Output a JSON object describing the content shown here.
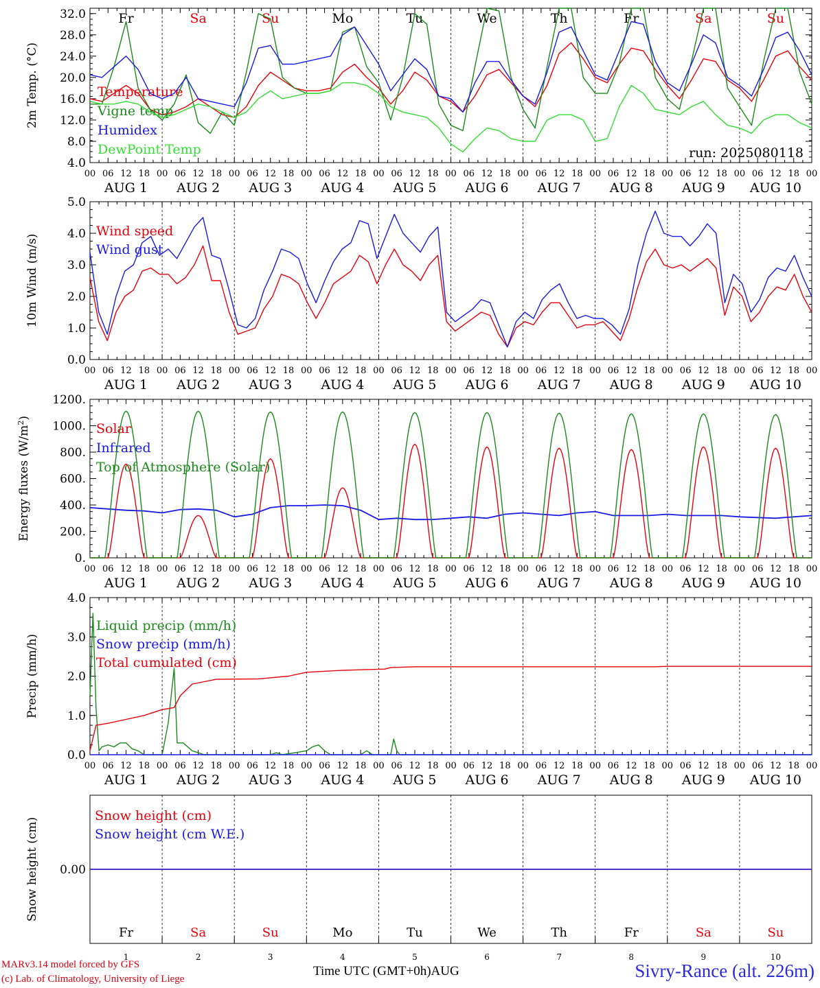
{
  "footer": {
    "model": "MARv3.14 model forced by GFS",
    "copyright": "(c) Lab. of Climatology, University of Liege",
    "x_axis_label": "Time UTC (GMT+0h)AUG",
    "station": "Sivry-Rance (alt. 226m)"
  },
  "colors": {
    "red": "#e8000b",
    "green": "#1a8a1a",
    "blue": "#1a1ae6",
    "lightgreen": "#33dd33",
    "weekend": "#e8000b"
  },
  "chart_data": [
    {
      "type": "line",
      "ylabel_text": "2m Temp. (",
      "ylabel_unit": "°C)",
      "ylim": [
        4,
        33
      ],
      "yticks": [
        "4.0",
        "8.0",
        "12.0",
        "16.0",
        "20.0",
        "24.0",
        "28.0",
        "32.0"
      ],
      "days": [
        "Fr",
        "Sa",
        "Su",
        "Mo",
        "Tu",
        "We",
        "Th",
        "Fr",
        "Sa",
        "Su"
      ],
      "date_labels": [
        "AUG 1",
        "AUG 2",
        "AUG 3",
        "AUG 4",
        "AUG 5",
        "AUG 6",
        "AUG 7",
        "AUG 8",
        "AUG 9",
        "AUG 10"
      ],
      "hour_ticks": [
        "00",
        "06",
        "12",
        "18"
      ],
      "annotation": "run: 2025080118",
      "series": [
        {
          "name": "Temperature",
          "color": "red",
          "values": [
            16.0,
            15.5,
            17.0,
            18.5,
            17.0,
            14.0,
            13.0,
            13.5,
            14.5,
            16.0,
            14.5,
            13.0,
            12.5,
            14.5,
            18.5,
            21.0,
            19.5,
            18.0,
            17.5,
            17.5,
            18.0,
            21.0,
            22.5,
            20.0,
            18.0,
            15.0,
            17.5,
            21.0,
            19.5,
            16.5,
            15.5,
            13.5,
            16.5,
            20.5,
            21.5,
            19.0,
            16.5,
            14.5,
            18.5,
            24.5,
            26.5,
            23.5,
            20.0,
            19.0,
            22.5,
            25.5,
            25.0,
            21.5,
            18.5,
            16.0,
            19.5,
            23.5,
            23.0,
            19.5,
            18.0,
            15.5,
            19.5,
            24.0,
            25.0,
            22.0,
            19.5
          ]
        },
        {
          "name": "Vigne temp",
          "color": "green",
          "values": [
            15.0,
            15.0,
            22.0,
            30.5,
            18.0,
            14.0,
            12.0,
            15.0,
            20.5,
            11.5,
            9.5,
            13.5,
            11.0,
            21.0,
            32.0,
            31.0,
            20.0,
            18.0,
            17.0,
            17.0,
            17.5,
            28.5,
            29.5,
            22.0,
            19.0,
            12.0,
            20.0,
            32.0,
            30.0,
            15.0,
            11.0,
            10.0,
            22.0,
            33.0,
            32.5,
            20.0,
            14.0,
            10.5,
            22.0,
            33.0,
            33.0,
            20.0,
            17.0,
            17.0,
            22.5,
            33.0,
            33.0,
            20.0,
            16.0,
            14.0,
            23.0,
            33.0,
            33.0,
            18.0,
            14.5,
            11.0,
            23.0,
            33.0,
            33.0,
            21.0,
            15.0
          ]
        },
        {
          "name": "Humidex",
          "color": "blue",
          "values": [
            20.5,
            20.0,
            22.0,
            24.0,
            21.5,
            17.0,
            16.0,
            17.0,
            20.0,
            16.0,
            15.5,
            15.0,
            14.5,
            19.0,
            25.5,
            26.0,
            22.5,
            22.5,
            23.0,
            23.5,
            24.0,
            28.0,
            29.5,
            26.0,
            22.5,
            17.5,
            20.5,
            23.5,
            21.5,
            16.5,
            16.0,
            13.5,
            19.0,
            23.0,
            23.0,
            19.5,
            16.5,
            15.0,
            21.0,
            28.5,
            29.5,
            25.0,
            20.5,
            19.5,
            25.0,
            30.5,
            30.0,
            23.0,
            19.0,
            17.5,
            22.5,
            28.0,
            26.5,
            20.0,
            18.5,
            16.5,
            21.5,
            27.5,
            28.5,
            25.0,
            20.5
          ]
        },
        {
          "name": "DewPoint Temp",
          "color": "lightgreen",
          "values": [
            15.5,
            15.0,
            15.0,
            15.5,
            15.0,
            13.5,
            12.5,
            13.0,
            14.0,
            15.0,
            14.5,
            13.5,
            12.5,
            13.5,
            16.0,
            17.5,
            16.0,
            16.5,
            17.0,
            17.0,
            17.5,
            19.0,
            19.0,
            18.5,
            17.0,
            14.5,
            13.5,
            13.0,
            12.5,
            10.5,
            7.5,
            6.0,
            8.5,
            10.5,
            10.0,
            8.5,
            8.0,
            8.0,
            12.0,
            13.0,
            13.0,
            12.0,
            8.0,
            8.5,
            14.5,
            18.5,
            17.0,
            14.0,
            13.5,
            13.0,
            14.5,
            15.5,
            13.0,
            11.0,
            10.5,
            9.5,
            12.0,
            13.0,
            13.0,
            11.5,
            10.5
          ]
        }
      ]
    },
    {
      "type": "line",
      "ylabel_text": "10m Wind (m/s)",
      "ylim": [
        0,
        5
      ],
      "yticks": [
        "0.0",
        "1.0",
        "2.0",
        "3.0",
        "4.0",
        "5.0"
      ],
      "days": [
        "Fr",
        "Sa",
        "Su",
        "Mo",
        "Tu",
        "We",
        "Th",
        "Fr",
        "Sa",
        "Su"
      ],
      "date_labels": [
        "AUG 1",
        "AUG 2",
        "AUG 3",
        "AUG 4",
        "AUG 5",
        "AUG 6",
        "AUG 7",
        "AUG 8",
        "AUG 9",
        "AUG 10"
      ],
      "hour_ticks": [
        "00",
        "06",
        "12",
        "18"
      ],
      "series": [
        {
          "name": "Wind speed",
          "color": "red",
          "values": [
            2.6,
            1.2,
            0.6,
            1.5,
            2.0,
            2.2,
            2.8,
            2.9,
            2.7,
            2.7,
            2.4,
            2.6,
            3.0,
            3.6,
            2.5,
            2.5,
            1.5,
            0.8,
            0.9,
            1.0,
            1.6,
            2.0,
            2.7,
            2.6,
            2.4,
            1.8,
            1.3,
            1.8,
            2.4,
            2.6,
            2.8,
            3.3,
            3.1,
            2.4,
            3.0,
            3.5,
            3.0,
            2.8,
            2.5,
            3.0,
            3.3,
            1.2,
            0.9,
            1.1,
            1.3,
            1.5,
            1.4,
            0.8,
            0.4,
            1.0,
            1.2,
            1.1,
            1.5,
            1.8,
            1.8,
            1.4,
            1.0,
            1.1,
            1.1,
            1.2,
            0.9,
            0.6,
            1.3,
            2.3,
            3.1,
            3.5,
            3.0,
            2.9,
            3.0,
            2.8,
            3.0,
            3.2,
            2.9,
            1.4,
            2.3,
            2.0,
            1.2,
            1.5,
            2.0,
            2.3,
            2.2,
            2.7,
            2.0,
            1.5
          ]
        },
        {
          "name": "Wind gust",
          "color": "blue",
          "values": [
            3.4,
            1.5,
            0.8,
            2.0,
            2.8,
            3.0,
            3.7,
            3.9,
            3.3,
            3.5,
            3.2,
            3.7,
            4.2,
            4.5,
            3.3,
            3.2,
            2.2,
            1.1,
            1.0,
            1.3,
            2.2,
            2.8,
            3.5,
            3.4,
            3.2,
            2.4,
            1.8,
            2.5,
            3.1,
            3.5,
            3.7,
            4.4,
            4.3,
            3.2,
            3.9,
            4.6,
            4.0,
            3.7,
            3.4,
            3.9,
            4.2,
            1.5,
            1.2,
            1.4,
            1.6,
            1.9,
            1.8,
            1.1,
            0.4,
            1.2,
            1.5,
            1.3,
            1.9,
            2.2,
            2.4,
            1.8,
            1.3,
            1.4,
            1.3,
            1.3,
            1.1,
            0.8,
            1.6,
            3.0,
            4.0,
            4.7,
            4.0,
            3.9,
            3.9,
            3.6,
            3.9,
            4.3,
            4.0,
            1.8,
            2.7,
            2.4,
            1.5,
            1.9,
            2.6,
            2.9,
            2.8,
            3.3,
            2.6,
            2.0
          ]
        }
      ]
    },
    {
      "type": "line",
      "ylabel_text": "Energy fluxes (W/m",
      "ylabel_unit": "2)",
      "ylim": [
        0,
        1200
      ],
      "yticks": [
        "0.",
        "200.",
        "400.",
        "600.",
        "800.",
        "1000.",
        "1200."
      ],
      "days": [
        "Fr",
        "Sa",
        "Su",
        "Mo",
        "Tu",
        "We",
        "Th",
        "Fr",
        "Sa",
        "Su"
      ],
      "date_labels": [
        "AUG 1",
        "AUG 2",
        "AUG 3",
        "AUG 4",
        "AUG 5",
        "AUG 6",
        "AUG 7",
        "AUG 8",
        "AUG 9",
        "AUG 10"
      ],
      "hour_ticks": [
        "00",
        "06",
        "12",
        "18"
      ],
      "series": [
        {
          "name": "Solar",
          "color": "red",
          "daily_peaks": [
            710,
            320,
            750,
            530,
            860,
            840,
            830,
            820,
            840,
            830
          ]
        },
        {
          "name": "Infrared",
          "color": "blue",
          "values": [
            380,
            370,
            360,
            355,
            340,
            365,
            370,
            360,
            310,
            330,
            380,
            395,
            395,
            400,
            395,
            360,
            290,
            300,
            290,
            290,
            300,
            310,
            300,
            330,
            340,
            330,
            320,
            340,
            350,
            320,
            320,
            320,
            330,
            320,
            320,
            320,
            310,
            305,
            300,
            310,
            320
          ]
        },
        {
          "name": "Top of Atmosphere (Solar)",
          "color": "green",
          "daily_peaks": [
            1110,
            1110,
            1105,
            1105,
            1100,
            1100,
            1095,
            1090,
            1090,
            1085
          ]
        }
      ]
    },
    {
      "type": "line",
      "ylabel_text": "Precip (mm/h)",
      "ylim": [
        0,
        4
      ],
      "yticks": [
        "0.0",
        "1.0",
        "2.0",
        "3.0",
        "4.0"
      ],
      "days": [
        "Fr",
        "Sa",
        "Su",
        "Mo",
        "Tu",
        "We",
        "Th",
        "Fr",
        "Sa",
        "Su"
      ],
      "date_labels": [
        "AUG 1",
        "AUG 2",
        "AUG 3",
        "AUG 4",
        "AUG 5",
        "AUG 6",
        "AUG 7",
        "AUG 8",
        "AUG 9",
        "AUG 10"
      ],
      "hour_ticks": [
        "00",
        "06",
        "12",
        "18"
      ],
      "series": [
        {
          "name": "Liquid precip (mm/h)",
          "color": "green",
          "points": [
            [
              0,
              1.5
            ],
            [
              1,
              3.6
            ],
            [
              2,
              1.2
            ],
            [
              3,
              0.1
            ],
            [
              4,
              0.2
            ],
            [
              6,
              0.25
            ],
            [
              8,
              0.2
            ],
            [
              10,
              0.3
            ],
            [
              12,
              0.3
            ],
            [
              14,
              0.15
            ],
            [
              16,
              0.1
            ],
            [
              18,
              0.0
            ],
            [
              24,
              0.0
            ],
            [
              26,
              0.8
            ],
            [
              28,
              2.2
            ],
            [
              29,
              0.3
            ],
            [
              31,
              0.3
            ],
            [
              34,
              0.1
            ],
            [
              36,
              0.05
            ],
            [
              38,
              0.0
            ],
            [
              60,
              0.0
            ],
            [
              62,
              0.05
            ],
            [
              64,
              0.0
            ],
            [
              72,
              0.1
            ],
            [
              74,
              0.2
            ],
            [
              76,
              0.25
            ],
            [
              78,
              0.1
            ],
            [
              80,
              0.0
            ],
            [
              90,
              0.0
            ],
            [
              92,
              0.1
            ],
            [
              94,
              0.0
            ],
            [
              100,
              0.0
            ],
            [
              101,
              0.4
            ],
            [
              102,
              0.1
            ],
            [
              103,
              0.0
            ],
            [
              240,
              0.0
            ]
          ]
        },
        {
          "name": "Snow precip (mm/h)",
          "color": "blue",
          "points": [
            [
              0,
              0
            ],
            [
              240,
              0
            ]
          ]
        },
        {
          "name": "Total cumulated (cm)",
          "color": "red",
          "points": [
            [
              0,
              0.1
            ],
            [
              2,
              0.75
            ],
            [
              6,
              0.8
            ],
            [
              12,
              0.9
            ],
            [
              18,
              1.0
            ],
            [
              24,
              1.15
            ],
            [
              28,
              1.2
            ],
            [
              30,
              1.5
            ],
            [
              34,
              1.8
            ],
            [
              42,
              1.92
            ],
            [
              56,
              1.93
            ],
            [
              66,
              2.0
            ],
            [
              72,
              2.1
            ],
            [
              84,
              2.15
            ],
            [
              98,
              2.18
            ],
            [
              100,
              2.22
            ],
            [
              108,
              2.24
            ],
            [
              188,
              2.24
            ],
            [
              192,
              2.25
            ],
            [
              240,
              2.25
            ]
          ]
        }
      ]
    },
    {
      "type": "line",
      "ylabel_text": "Snow height (cm)",
      "ylim": [
        -1,
        1
      ],
      "yticks": [
        "0.00"
      ],
      "days": [
        "Fr",
        "Sa",
        "Su",
        "Mo",
        "Tu",
        "We",
        "Th",
        "Fr",
        "Sa",
        "Su"
      ],
      "day_numbers": [
        "1",
        "2",
        "3",
        "4",
        "5",
        "6",
        "7",
        "8",
        "9",
        "10"
      ],
      "series": [
        {
          "name": "Snow height (cm)",
          "color": "red",
          "points": [
            [
              0,
              0
            ],
            [
              240,
              0
            ]
          ]
        },
        {
          "name": "Snow height (cm W.E.)",
          "color": "blue",
          "points": [
            [
              0,
              0
            ],
            [
              240,
              0
            ]
          ]
        }
      ]
    }
  ]
}
